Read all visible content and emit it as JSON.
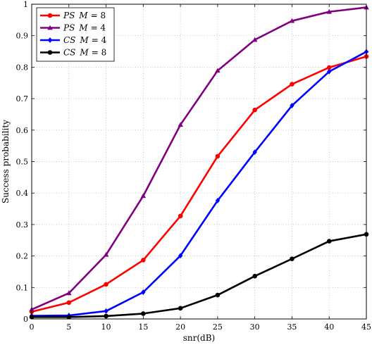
{
  "chart_data": {
    "type": "line",
    "title": "",
    "xlabel": "snr(dB)",
    "ylabel": "Success probability",
    "xlim": [
      0,
      45
    ],
    "ylim": [
      0,
      1
    ],
    "xticks": [
      0,
      5,
      10,
      15,
      20,
      25,
      30,
      35,
      40,
      45
    ],
    "yticks": [
      0,
      0.1,
      0.2,
      0.3,
      0.4,
      0.5,
      0.6,
      0.7,
      0.8,
      0.9,
      1
    ],
    "grid": true,
    "legend_position": "top-left",
    "x": [
      0,
      5,
      10,
      15,
      20,
      25,
      30,
      35,
      40,
      45
    ],
    "series": [
      {
        "name": "PS M = 8",
        "name_parts": [
          "PS",
          "M",
          "= 8"
        ],
        "color": "#ff0000",
        "marker": "circle",
        "values": [
          0.023,
          0.052,
          0.11,
          0.187,
          0.327,
          0.517,
          0.664,
          0.746,
          0.799,
          0.834
        ]
      },
      {
        "name": "PS M = 4",
        "name_parts": [
          "PS",
          "M",
          "= 4"
        ],
        "color": "#800080",
        "marker": "triangle",
        "values": [
          0.03,
          0.082,
          0.204,
          0.391,
          0.617,
          0.789,
          0.887,
          0.947,
          0.976,
          0.99
        ]
      },
      {
        "name": "CS M = 4",
        "name_parts": [
          "CS",
          "M",
          "= 4"
        ],
        "color": "#0000ff",
        "marker": "diamond",
        "values": [
          0.01,
          0.011,
          0.025,
          0.085,
          0.201,
          0.376,
          0.53,
          0.678,
          0.786,
          0.849
        ]
      },
      {
        "name": "CS M = 8",
        "name_parts": [
          "CS",
          "M",
          "= 8"
        ],
        "color": "#000000",
        "marker": "circle",
        "values": [
          0.006,
          0.006,
          0.009,
          0.017,
          0.034,
          0.076,
          0.136,
          0.191,
          0.247,
          0.269
        ]
      }
    ]
  }
}
